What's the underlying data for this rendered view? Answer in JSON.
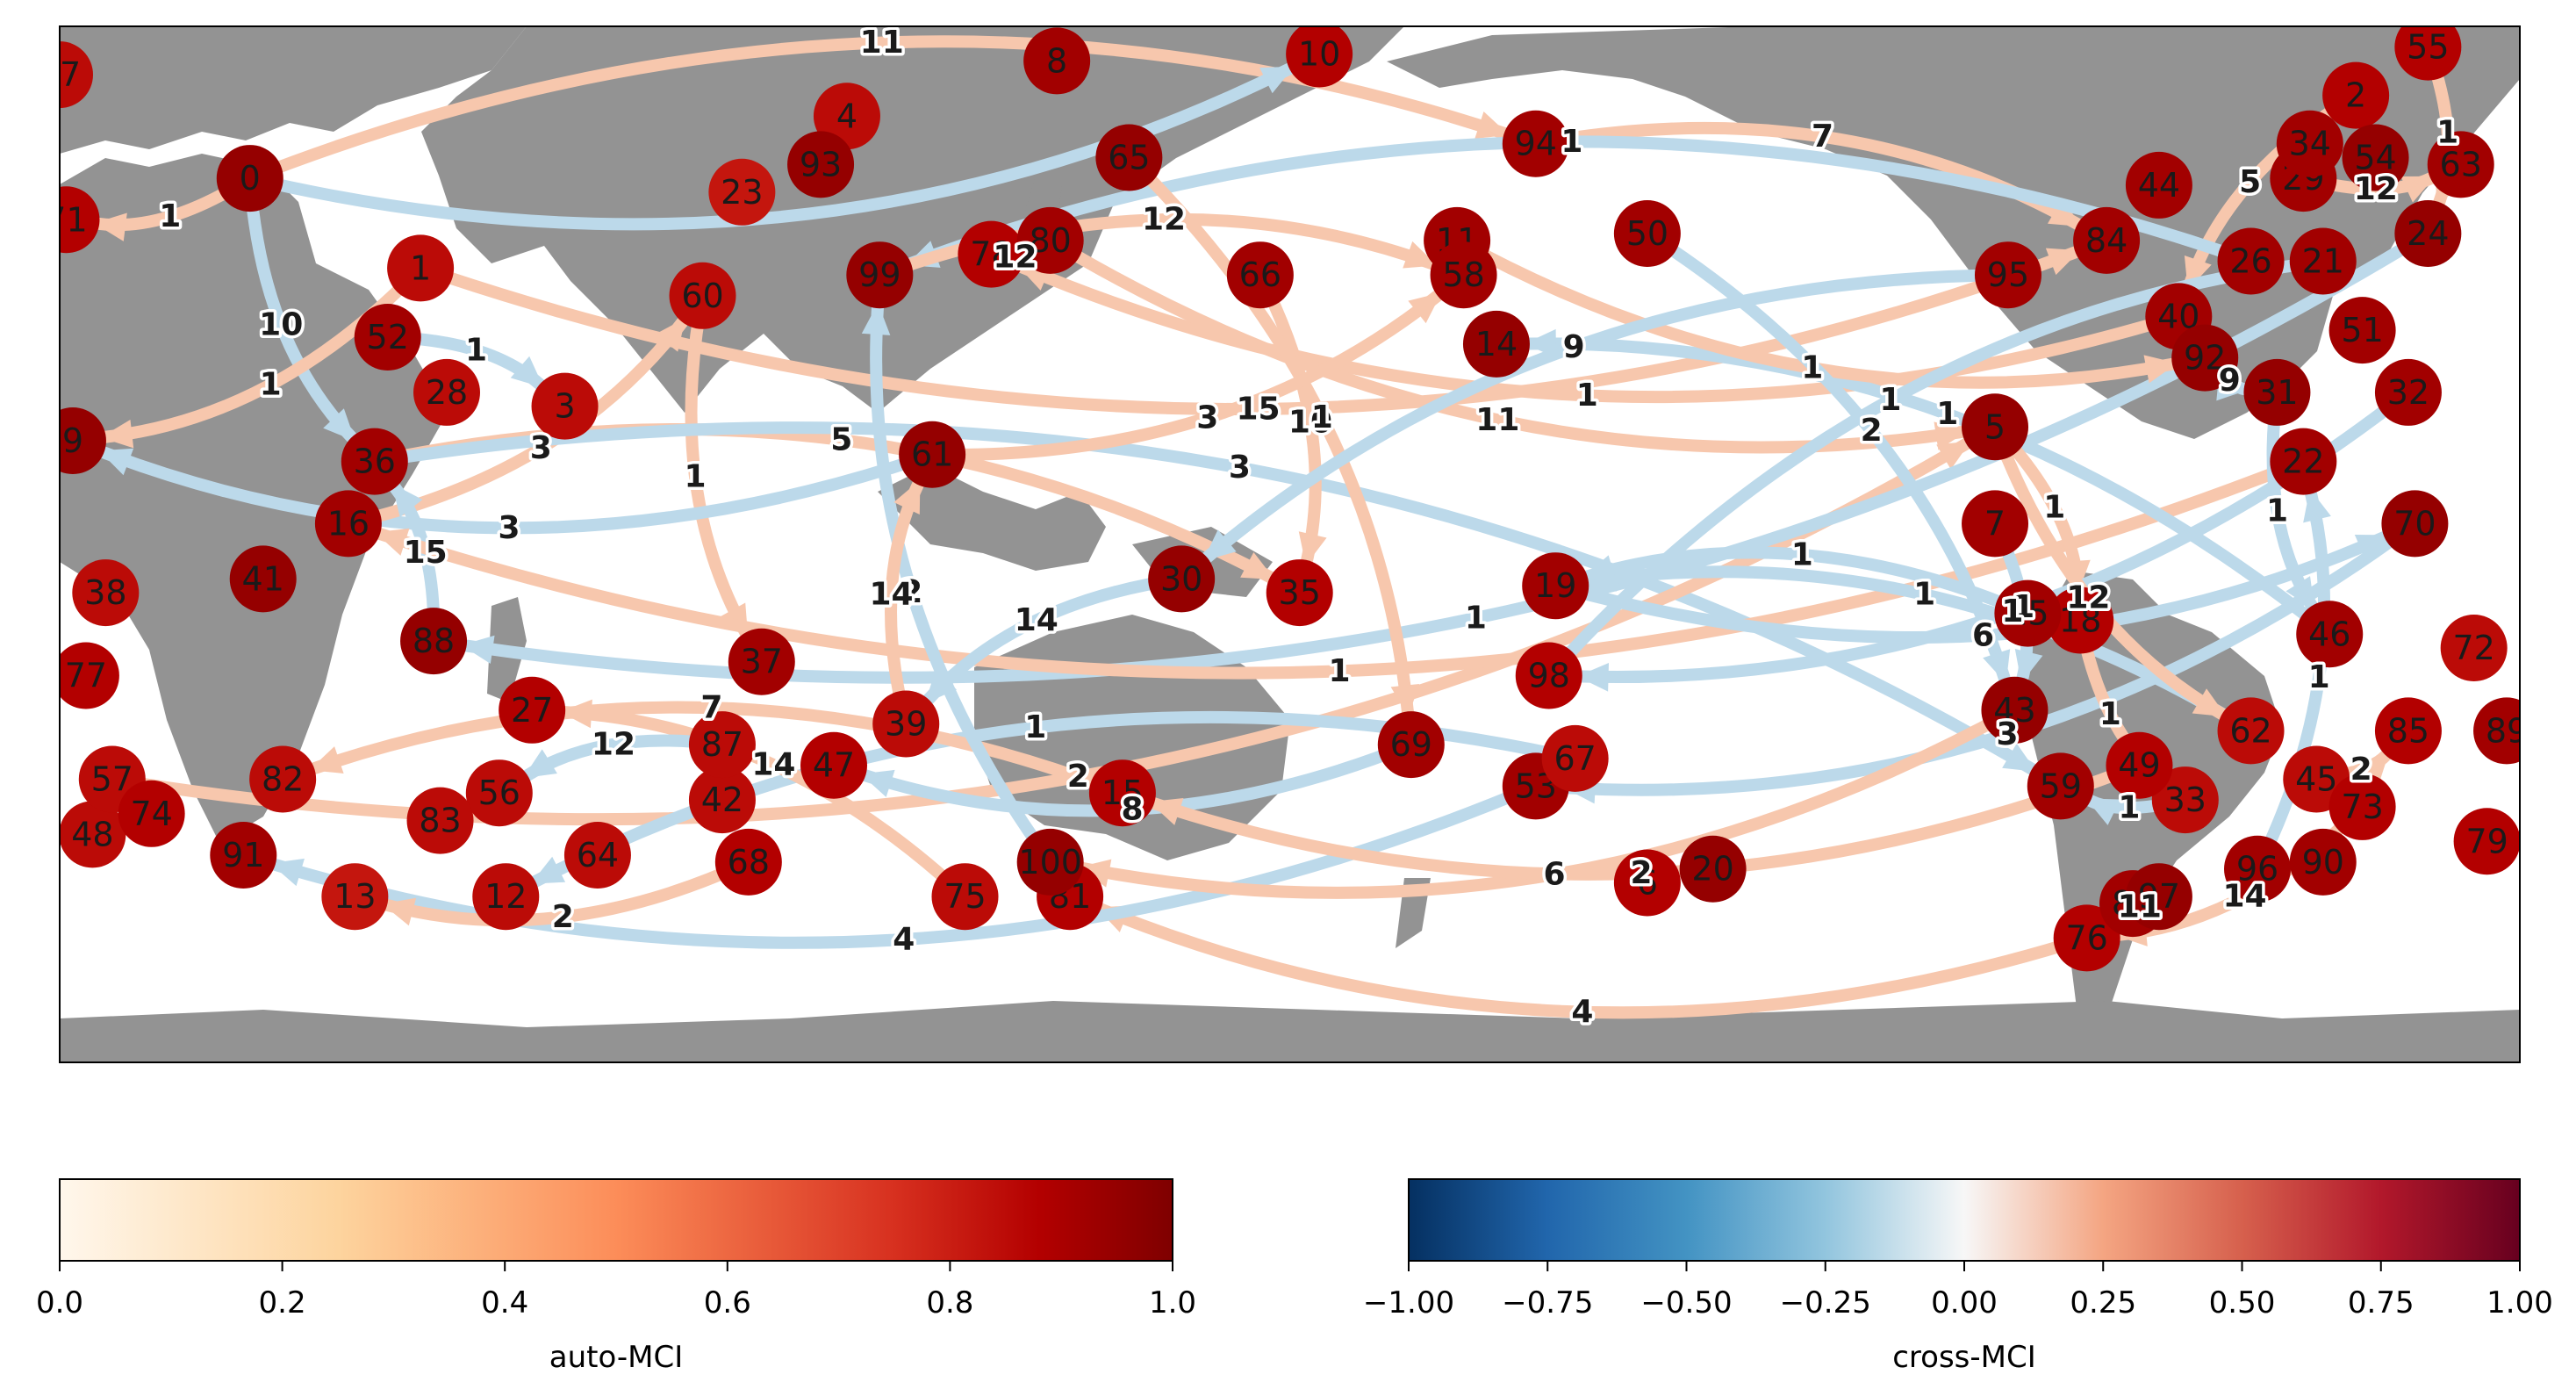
{
  "colors": {
    "land": "#939393",
    "ocean": "#ffffff",
    "edge_positive": "#f7c7ad",
    "edge_negative": "#bcd9ea",
    "node_text": "#1a1a1a"
  },
  "nodes": [
    {
      "id": "0",
      "lon": -151,
      "lat": 68,
      "mci": 0.95
    },
    {
      "id": "1",
      "lon": -125,
      "lat": 55,
      "mci": 0.85
    },
    {
      "id": "2",
      "lon": 170,
      "lat": 80,
      "mci": 0.88
    },
    {
      "id": "3",
      "lon": -103,
      "lat": 35,
      "mci": 0.85
    },
    {
      "id": "4",
      "lon": -60,
      "lat": 77,
      "mci": 0.85
    },
    {
      "id": "5",
      "lon": 115,
      "lat": 32,
      "mci": 0.95
    },
    {
      "id": "6",
      "lon": 62,
      "lat": -34,
      "mci": 0.88
    },
    {
      "id": "7",
      "lon": 115,
      "lat": 18,
      "mci": 0.92
    },
    {
      "id": "8",
      "lon": -28,
      "lat": 85,
      "mci": 0.92
    },
    {
      "id": "9",
      "lon": -178,
      "lat": 30,
      "mci": 0.95
    },
    {
      "id": "10",
      "lon": 12,
      "lat": 86,
      "mci": 0.88
    },
    {
      "id": "11",
      "lon": 33,
      "lat": 59,
      "mci": 0.92
    },
    {
      "id": "12",
      "lon": -112,
      "lat": -36,
      "mci": 0.85
    },
    {
      "id": "13",
      "lon": -135,
      "lat": -36,
      "mci": 0.82
    },
    {
      "id": "14",
      "lon": 39,
      "lat": 44,
      "mci": 0.95
    },
    {
      "id": "15",
      "lon": -18,
      "lat": -21,
      "mci": 0.88
    },
    {
      "id": "16",
      "lon": -136,
      "lat": 18,
      "mci": 0.92
    },
    {
      "id": "17",
      "lon": -180,
      "lat": 83,
      "mci": 0.85
    },
    {
      "id": "18",
      "lon": 128,
      "lat": 4,
      "mci": 0.88
    },
    {
      "id": "19",
      "lon": 48,
      "lat": 9,
      "mci": 0.92
    },
    {
      "id": "20",
      "lon": 72,
      "lat": -32,
      "mci": 0.95
    },
    {
      "id": "21",
      "lon": 165,
      "lat": 56,
      "mci": 0.92
    },
    {
      "id": "22",
      "lon": 162,
      "lat": 27,
      "mci": 0.92
    },
    {
      "id": "23",
      "lon": -76,
      "lat": 66,
      "mci": 0.82
    },
    {
      "id": "24",
      "lon": 181,
      "lat": 60,
      "mci": 0.95
    },
    {
      "id": "25",
      "lon": 120,
      "lat": 5,
      "mci": 0.92
    },
    {
      "id": "26",
      "lon": 154,
      "lat": 56,
      "mci": 0.92
    },
    {
      "id": "27",
      "lon": -108,
      "lat": -9,
      "mci": 0.88
    },
    {
      "id": "28",
      "lon": -121,
      "lat": 37,
      "mci": 0.85
    },
    {
      "id": "29",
      "lon": 162,
      "lat": 68,
      "mci": 0.92
    },
    {
      "id": "30",
      "lon": -9,
      "lat": 10,
      "mci": 0.95
    },
    {
      "id": "31",
      "lon": 158,
      "lat": 37,
      "mci": 0.95
    },
    {
      "id": "32",
      "lon": 178,
      "lat": 37,
      "mci": 0.92
    },
    {
      "id": "33",
      "lon": 144,
      "lat": -22,
      "mci": 0.85
    },
    {
      "id": "34",
      "lon": 163,
      "lat": 73,
      "mci": 0.92
    },
    {
      "id": "35",
      "lon": 9,
      "lat": 8,
      "mci": 0.88
    },
    {
      "id": "36",
      "lon": -132,
      "lat": 27,
      "mci": 0.92
    },
    {
      "id": "37",
      "lon": -73,
      "lat": -2,
      "mci": 0.92
    },
    {
      "id": "38",
      "lon": -173,
      "lat": 8,
      "mci": 0.85
    },
    {
      "id": "39",
      "lon": -51,
      "lat": -11,
      "mci": 0.85
    },
    {
      "id": "40",
      "lon": 143,
      "lat": 48,
      "mci": 0.92
    },
    {
      "id": "41",
      "lon": -149,
      "lat": 10,
      "mci": 0.95
    },
    {
      "id": "42",
      "lon": -79,
      "lat": -22,
      "mci": 0.85
    },
    {
      "id": "43",
      "lon": 118,
      "lat": -9,
      "mci": 0.95
    },
    {
      "id": "44",
      "lon": 140,
      "lat": 67,
      "mci": 0.92
    },
    {
      "id": "45",
      "lon": 164,
      "lat": -19,
      "mci": 0.85
    },
    {
      "id": "46",
      "lon": 166,
      "lat": 2,
      "mci": 0.92
    },
    {
      "id": "47",
      "lon": -62,
      "lat": -17,
      "mci": 0.88
    },
    {
      "id": "48",
      "lon": -175,
      "lat": -27,
      "mci": 0.85
    },
    {
      "id": "49",
      "lon": 137,
      "lat": -17,
      "mci": 0.88
    },
    {
      "id": "50",
      "lon": 62,
      "lat": 60,
      "mci": 0.92
    },
    {
      "id": "51",
      "lon": 171,
      "lat": 46,
      "mci": 0.92
    },
    {
      "id": "52",
      "lon": -130,
      "lat": 45,
      "mci": 0.92
    },
    {
      "id": "53",
      "lon": 45,
      "lat": -20,
      "mci": 0.92
    },
    {
      "id": "54",
      "lon": 173,
      "lat": 71,
      "mci": 0.95
    },
    {
      "id": "55",
      "lon": 181,
      "lat": 87,
      "mci": 0.88
    },
    {
      "id": "56",
      "lon": -113,
      "lat": -21,
      "mci": 0.85
    },
    {
      "id": "57",
      "lon": -172,
      "lat": -19,
      "mci": 0.85
    },
    {
      "id": "58",
      "lon": 34,
      "lat": 54,
      "mci": 0.92
    },
    {
      "id": "59",
      "lon": 125,
      "lat": -20,
      "mci": 0.92
    },
    {
      "id": "60",
      "lon": -82,
      "lat": 51,
      "mci": 0.85
    },
    {
      "id": "61",
      "lon": -47,
      "lat": 28,
      "mci": 0.95
    },
    {
      "id": "62",
      "lon": 154,
      "lat": -12,
      "mci": 0.85
    },
    {
      "id": "63",
      "lon": 186,
      "lat": 70,
      "mci": 0.92
    },
    {
      "id": "64",
      "lon": -98,
      "lat": -30,
      "mci": 0.85
    },
    {
      "id": "65",
      "lon": -17,
      "lat": 71,
      "mci": 0.95
    },
    {
      "id": "66",
      "lon": 3,
      "lat": 54,
      "mci": 0.92
    },
    {
      "id": "67",
      "lon": 51,
      "lat": -16,
      "mci": 0.85
    },
    {
      "id": "68",
      "lon": -75,
      "lat": -31,
      "mci": 0.88
    },
    {
      "id": "69",
      "lon": 26,
      "lat": -14,
      "mci": 0.92
    },
    {
      "id": "70",
      "lon": 179,
      "lat": 18,
      "mci": 0.95
    },
    {
      "id": "71",
      "lon": -179,
      "lat": 62,
      "mci": 0.88
    },
    {
      "id": "72",
      "lon": 188,
      "lat": 0,
      "mci": 0.85
    },
    {
      "id": "73",
      "lon": 171,
      "lat": -23,
      "mci": 0.88
    },
    {
      "id": "74",
      "lon": -166,
      "lat": -24,
      "mci": 0.88
    },
    {
      "id": "75",
      "lon": -42,
      "lat": -36,
      "mci": 0.85
    },
    {
      "id": "76",
      "lon": 129,
      "lat": -42,
      "mci": 0.88
    },
    {
      "id": "77",
      "lon": -176,
      "lat": -4,
      "mci": 0.88
    },
    {
      "id": "78",
      "lon": -38,
      "lat": 57,
      "mci": 0.88
    },
    {
      "id": "79",
      "lon": 190,
      "lat": -28,
      "mci": 0.88
    },
    {
      "id": "80",
      "lon": -29,
      "lat": 59,
      "mci": 0.92
    },
    {
      "id": "81",
      "lon": -26,
      "lat": -36,
      "mci": 0.88
    },
    {
      "id": "82",
      "lon": -146,
      "lat": -19,
      "mci": 0.85
    },
    {
      "id": "83",
      "lon": -122,
      "lat": -25,
      "mci": 0.85
    },
    {
      "id": "84",
      "lon": 132,
      "lat": 59,
      "mci": 0.92
    },
    {
      "id": "85",
      "lon": 178,
      "lat": -12,
      "mci": 0.88
    },
    {
      "id": "86",
      "lon": 136,
      "lat": -37,
      "mci": 0.92
    },
    {
      "id": "87",
      "lon": -79,
      "lat": -14,
      "mci": 0.85
    },
    {
      "id": "88",
      "lon": -123,
      "lat": 1,
      "mci": 0.95
    },
    {
      "id": "89",
      "lon": 193,
      "lat": -12,
      "mci": 0.92
    },
    {
      "id": "90",
      "lon": 165,
      "lat": -31,
      "mci": 0.92
    },
    {
      "id": "91",
      "lon": -152,
      "lat": -30,
      "mci": 0.92
    },
    {
      "id": "92",
      "lon": 147,
      "lat": 42,
      "mci": 0.95
    },
    {
      "id": "93",
      "lon": -64,
      "lat": 70,
      "mci": 0.95
    },
    {
      "id": "94",
      "lon": 45,
      "lat": 73,
      "mci": 0.92
    },
    {
      "id": "95",
      "lon": 117,
      "lat": 54,
      "mci": 0.92
    },
    {
      "id": "96",
      "lon": 155,
      "lat": -32,
      "mci": 0.92
    },
    {
      "id": "97",
      "lon": 140,
      "lat": -36,
      "mci": 0.95
    },
    {
      "id": "98",
      "lon": 47,
      "lat": -4,
      "mci": 0.88
    },
    {
      "id": "99",
      "lon": -55,
      "lat": 54,
      "mci": 0.95
    },
    {
      "id": "100",
      "lon": -29,
      "lat": -31,
      "mci": 0.95
    }
  ],
  "edges": [
    {
      "from": "0",
      "to": "94",
      "lag": "11",
      "sign": "positive"
    },
    {
      "from": "0",
      "to": "10",
      "lag": "",
      "sign": "negative"
    },
    {
      "from": "0",
      "to": "71",
      "lag": "1",
      "sign": "positive"
    },
    {
      "from": "0",
      "to": "36",
      "lag": "10",
      "sign": "negative"
    },
    {
      "from": "1",
      "to": "9",
      "lag": "1",
      "sign": "positive"
    },
    {
      "from": "1",
      "to": "84",
      "lag": "15",
      "sign": "positive"
    },
    {
      "from": "52",
      "to": "3",
      "lag": "1",
      "sign": "negative"
    },
    {
      "from": "60",
      "to": "37",
      "lag": "1",
      "sign": "positive"
    },
    {
      "from": "61",
      "to": "9",
      "lag": "3",
      "sign": "negative"
    },
    {
      "from": "16",
      "to": "60",
      "lag": "3",
      "sign": "positive"
    },
    {
      "from": "36",
      "to": "35",
      "lag": "5",
      "sign": "positive"
    },
    {
      "from": "88",
      "to": "36",
      "lag": "15",
      "sign": "negative"
    },
    {
      "from": "36",
      "to": "59",
      "lag": "3",
      "sign": "negative"
    },
    {
      "from": "57",
      "to": "5",
      "lag": "2",
      "sign": "positive"
    },
    {
      "from": "94",
      "to": "84",
      "lag": "7",
      "sign": "positive"
    },
    {
      "from": "2",
      "to": "40",
      "lag": "5",
      "sign": "positive"
    },
    {
      "from": "55",
      "to": "24",
      "lag": "1",
      "sign": "positive"
    },
    {
      "from": "29",
      "to": "63",
      "lag": "12",
      "sign": "positive"
    },
    {
      "from": "24",
      "to": "88",
      "lag": "1",
      "sign": "negative"
    },
    {
      "from": "26",
      "to": "99",
      "lag": "1",
      "sign": "negative"
    },
    {
      "from": "40",
      "to": "78",
      "lag": "1",
      "sign": "positive"
    },
    {
      "from": "92",
      "to": "31",
      "lag": "9",
      "sign": "negative"
    },
    {
      "from": "22",
      "to": "16",
      "lag": "1",
      "sign": "positive"
    },
    {
      "from": "46",
      "to": "14",
      "lag": "1",
      "sign": "negative"
    },
    {
      "from": "70",
      "to": "53",
      "lag": "3",
      "sign": "negative"
    },
    {
      "from": "62",
      "to": "19",
      "lag": "1",
      "sign": "negative"
    },
    {
      "from": "33",
      "to": "59",
      "lag": "1",
      "sign": "negative"
    },
    {
      "from": "45",
      "to": "85",
      "lag": "2",
      "sign": "positive"
    },
    {
      "from": "73",
      "to": "76",
      "lag": "14",
      "sign": "positive"
    },
    {
      "from": "96",
      "to": "22",
      "lag": "1",
      "sign": "negative"
    },
    {
      "from": "76",
      "to": "81",
      "lag": "4",
      "sign": "positive"
    },
    {
      "from": "86",
      "to": "97",
      "lag": "11",
      "sign": "positive"
    },
    {
      "from": "53",
      "to": "91",
      "lag": "4",
      "sign": "negative"
    },
    {
      "from": "67",
      "to": "12",
      "lag": "1",
      "sign": "negative"
    },
    {
      "from": "69",
      "to": "47",
      "lag": "8",
      "sign": "negative"
    },
    {
      "from": "15",
      "to": "82",
      "lag": "7",
      "sign": "positive"
    },
    {
      "from": "100",
      "to": "99",
      "lag": "2",
      "sign": "negative"
    },
    {
      "from": "75",
      "to": "27",
      "lag": "14",
      "sign": "positive"
    },
    {
      "from": "68",
      "to": "13",
      "lag": "2",
      "sign": "positive"
    },
    {
      "from": "87",
      "to": "56",
      "lag": "12",
      "sign": "negative"
    },
    {
      "from": "39",
      "to": "61",
      "lag": "14",
      "sign": "positive"
    },
    {
      "from": "30",
      "to": "39",
      "lag": "14",
      "sign": "negative"
    },
    {
      "from": "99",
      "to": "58",
      "lag": "12",
      "sign": "positive"
    },
    {
      "from": "78",
      "to": "80",
      "lag": "12",
      "sign": "positive"
    },
    {
      "from": "66",
      "to": "35",
      "lag": "10",
      "sign": "positive"
    },
    {
      "from": "80",
      "to": "5",
      "lag": "11",
      "sign": "positive"
    },
    {
      "from": "65",
      "to": "69",
      "lag": "1",
      "sign": "positive"
    },
    {
      "from": "11",
      "to": "92",
      "lag": "1",
      "sign": "positive"
    },
    {
      "from": "50",
      "to": "43",
      "lag": "2",
      "sign": "negative"
    },
    {
      "from": "95",
      "to": "30",
      "lag": "9",
      "sign": "negative"
    },
    {
      "from": "5",
      "to": "18",
      "lag": "1",
      "sign": "positive"
    },
    {
      "from": "19",
      "to": "70",
      "lag": "6",
      "sign": "negative"
    },
    {
      "from": "98",
      "to": "21",
      "lag": "1",
      "sign": "negative"
    },
    {
      "from": "25",
      "to": "19",
      "lag": "1",
      "sign": "negative"
    },
    {
      "from": "43",
      "to": "100",
      "lag": "6",
      "sign": "positive"
    },
    {
      "from": "18",
      "to": "33",
      "lag": "1",
      "sign": "positive"
    },
    {
      "from": "49",
      "to": "15",
      "lag": "2",
      "sign": "positive"
    },
    {
      "from": "61",
      "to": "58",
      "lag": "3",
      "sign": "positive"
    },
    {
      "from": "7",
      "to": "43",
      "lag": "1",
      "sign": "negative"
    },
    {
      "from": "31",
      "to": "46",
      "lag": "1",
      "sign": "negative"
    },
    {
      "from": "32",
      "to": "98",
      "lag": "1",
      "sign": "negative"
    },
    {
      "from": "5",
      "to": "62",
      "lag": "12",
      "sign": "positive"
    }
  ],
  "map_extent": {
    "lon_min": -180,
    "lon_max": 195,
    "lat_min": -60,
    "lat_max": 90
  },
  "colorbars": [
    {
      "id": "auto",
      "label": "auto-MCI",
      "ticks": [
        "0.0",
        "0.2",
        "0.4",
        "0.6",
        "0.8",
        "1.0"
      ]
    },
    {
      "id": "cross",
      "label": "cross-MCI",
      "ticks": [
        "−1.00",
        "−0.75",
        "−0.50",
        "−0.25",
        "0.00",
        "0.25",
        "0.50",
        "0.75",
        "1.00"
      ]
    }
  ]
}
